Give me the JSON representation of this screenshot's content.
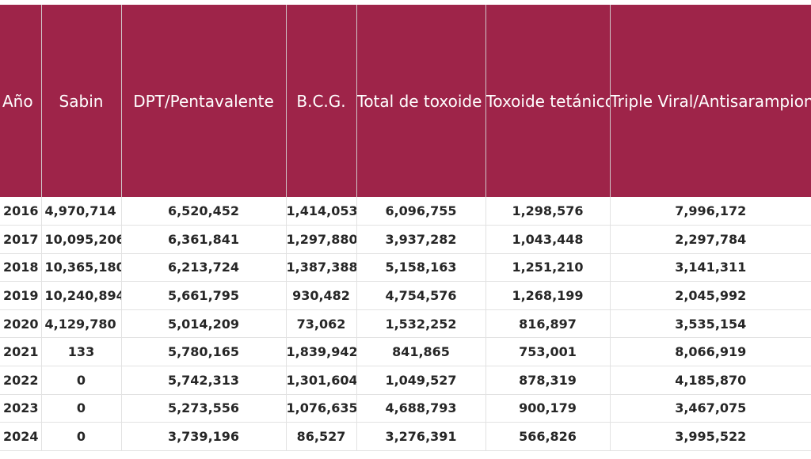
{
  "table": {
    "headers": [
      "Año",
      "Sabin",
      "DPT/Pentavalente",
      "B.C.G.",
      "Total de\ntoxoide\ntetánico\ndiftérico\n(incluye el de\nmujeres\nembarazadas)",
      "Toxoide\ntetánico a\nmujeres\nembarazadas\n(Incluye dosis\nde Tdpa)",
      "Triple\nViral/Antisarampionos"
    ],
    "rows": [
      [
        "2016",
        "4,970,714",
        "6,520,452",
        "1,414,053",
        "6,096,755",
        "1,298,576",
        "7,996,172"
      ],
      [
        "2017",
        "10,095,206",
        "6,361,841",
        "1,297,880",
        "3,937,282",
        "1,043,448",
        "2,297,784"
      ],
      [
        "2018",
        "10,365,180",
        "6,213,724",
        "1,387,388",
        "5,158,163",
        "1,251,210",
        "3,141,311"
      ],
      [
        "2019",
        "10,240,894",
        "5,661,795",
        "930,482",
        "4,754,576",
        "1,268,199",
        "2,045,992"
      ],
      [
        "2020",
        "4,129,780",
        "5,014,209",
        "73,062",
        "1,532,252",
        "816,897",
        "3,535,154"
      ],
      [
        "2021",
        "133",
        "5,780,165",
        "1,839,942",
        "841,865",
        "753,001",
        "8,066,919"
      ],
      [
        "2022",
        "0",
        "5,742,313",
        "1,301,604",
        "1,049,527",
        "878,319",
        "4,185,870"
      ],
      [
        "2023",
        "0",
        "5,273,556",
        "1,076,635",
        "4,688,793",
        "900,179",
        "3,467,075"
      ],
      [
        "2024",
        "0",
        "3,739,196",
        "86,527",
        "3,276,391",
        "566,826",
        "3,995,522"
      ]
    ]
  },
  "colors": {
    "header_bg": "#9e2449",
    "header_text": "#ffffff",
    "cell_text": "#262626",
    "grid_line": "#e2e2e2"
  }
}
